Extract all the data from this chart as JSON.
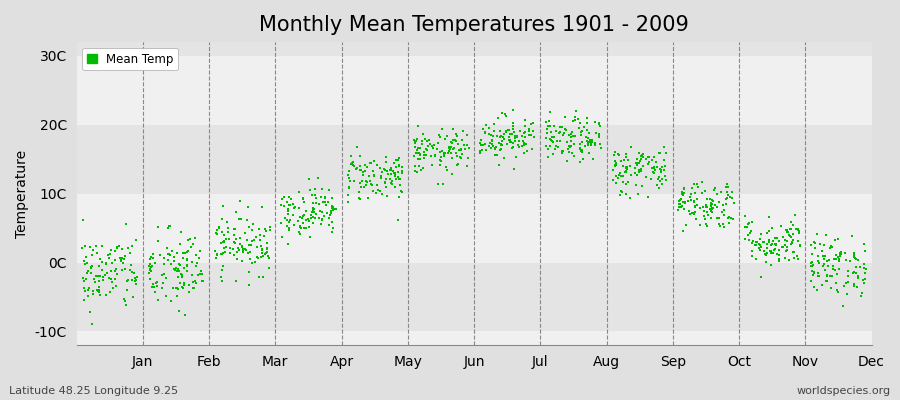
{
  "title": "Monthly Mean Temperatures 1901 - 2009",
  "ylabel": "Temperature",
  "xlabel_months": [
    "Jan",
    "Feb",
    "Mar",
    "Apr",
    "May",
    "Jun",
    "Jul",
    "Aug",
    "Sep",
    "Oct",
    "Nov",
    "Dec"
  ],
  "month_means": [
    -1.5,
    -1.2,
    2.8,
    7.5,
    12.5,
    16.0,
    18.2,
    17.8,
    13.5,
    8.5,
    3.0,
    -0.5
  ],
  "month_stds": [
    2.8,
    3.0,
    2.2,
    1.8,
    1.8,
    1.6,
    1.6,
    1.6,
    1.8,
    1.8,
    1.8,
    2.2
  ],
  "n_years": 109,
  "ylim": [
    -12,
    32
  ],
  "yticks": [
    -10,
    0,
    10,
    20,
    30
  ],
  "ytick_labels": [
    "-10C",
    "0C",
    "10C",
    "20C",
    "30C"
  ],
  "dot_color": "#00bb00",
  "dot_size": 4,
  "outer_bg": "#e0e0e0",
  "band_colors": [
    "#f0f0f0",
    "#e4e4e4"
  ],
  "grid_color": "#888888",
  "title_fontsize": 15,
  "axis_fontsize": 10,
  "legend_label": "Mean Temp",
  "bottom_left": "Latitude 48.25 Longitude 9.25",
  "bottom_right": "worldspecies.org"
}
